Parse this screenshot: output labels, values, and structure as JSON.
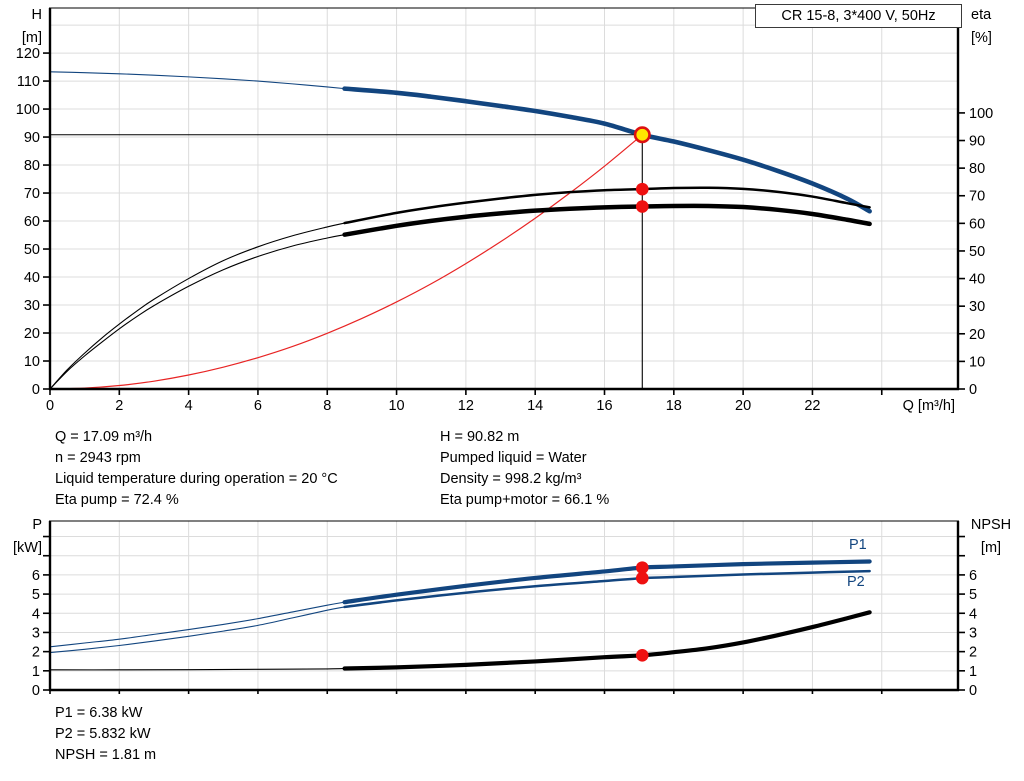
{
  "title_box": "CR 15-8, 3*400 V, 50Hz",
  "axis_labels": {
    "h1": "H",
    "h2": "[m]",
    "eta1": "eta",
    "eta2": "[%]",
    "q": "Q [m³/h]",
    "p1": "P",
    "p2": "[kW]",
    "npsh1": "NPSH",
    "npsh2": "[m]"
  },
  "curve_labels": {
    "p1": "P1",
    "p2": "P2"
  },
  "info_top": {
    "left": [
      "Q = 17.09 m³/h",
      "n = 2943 rpm",
      "Liquid temperature during operation = 20 °C",
      "Eta pump = 72.4 %"
    ],
    "right": [
      "H = 90.82 m",
      "Pumped liquid = Water",
      "Density = 998.2 kg/m³",
      "Eta pump+motor = 66.1 %"
    ]
  },
  "info_bottom": [
    "P1 = 6.38 kW",
    "P2 = 5.832 kW",
    "NPSH = 1.81 m"
  ],
  "colors": {
    "blue": "#12457f",
    "black": "#000000",
    "red": "#e82424",
    "marker_red": "#ee1111",
    "op_yellow": "#ffe600",
    "op_ring": "#dd1111",
    "grid": "#dcdcdc",
    "text": "#000000"
  },
  "chart_data": [
    {
      "type": "line",
      "title": "CR 15-8, 3*400 V, 50Hz",
      "x_axis": {
        "label": "Q [m³/h]",
        "min": 0,
        "max": 26.2,
        "tick_step": 2,
        "tick_max": 24,
        "label_max": 22,
        "grid_step": 2,
        "grid_max": 24
      },
      "y_left": {
        "label": "H [m]",
        "min": 0,
        "max": 136.1,
        "tick_step": 10,
        "tick_max": 120,
        "label_max": 120,
        "grid_max": 130
      },
      "y_right": {
        "label": "eta [%]",
        "min": 0,
        "max": 138.0,
        "tick_step": 10,
        "tick_max": 100,
        "label_max": 100
      },
      "series": [
        {
          "name": "head-curve-thin",
          "axis": "left",
          "color_key": "blue",
          "width": 1.1,
          "points": [
            [
              0,
              113.3
            ],
            [
              1,
              113.0
            ],
            [
              2,
              112.6
            ],
            [
              3,
              112.1
            ],
            [
              4,
              111.5
            ],
            [
              5,
              110.8
            ],
            [
              6,
              110.0
            ],
            [
              7,
              109.0
            ],
            [
              8,
              107.9
            ],
            [
              8.5,
              107.3
            ]
          ]
        },
        {
          "name": "head-curve",
          "axis": "left",
          "color_key": "blue",
          "width": 4.6,
          "points": [
            [
              8.5,
              107.3
            ],
            [
              10,
              105.8
            ],
            [
              11,
              104.4
            ],
            [
              12,
              102.8
            ],
            [
              13,
              101.1
            ],
            [
              14,
              99.3
            ],
            [
              15,
              97.2
            ],
            [
              16,
              94.8
            ],
            [
              17.09,
              90.82
            ],
            [
              18,
              88.4
            ],
            [
              19,
              85.3
            ],
            [
              20,
              81.9
            ],
            [
              21,
              77.9
            ],
            [
              22,
              73.4
            ],
            [
              23,
              68.0
            ],
            [
              23.65,
              63.5
            ]
          ]
        },
        {
          "name": "system-curve",
          "axis": "left",
          "color_key": "red",
          "width": 1.2,
          "points": [
            [
              0,
              0
            ],
            [
              1,
              0.31
            ],
            [
              2,
              1.24
            ],
            [
              3,
              2.8
            ],
            [
              4,
              5.0
            ],
            [
              5,
              7.8
            ],
            [
              6,
              11.2
            ],
            [
              7,
              15.2
            ],
            [
              8,
              19.9
            ],
            [
              9,
              25.2
            ],
            [
              10,
              31.1
            ],
            [
              11,
              37.6
            ],
            [
              12,
              44.8
            ],
            [
              13,
              52.6
            ],
            [
              14,
              61.0
            ],
            [
              15,
              70.0
            ],
            [
              16,
              79.6
            ],
            [
              17.09,
              90.82
            ]
          ]
        },
        {
          "name": "eta-pump-thin",
          "axis": "right",
          "color_key": "black",
          "width": 1.1,
          "points": [
            [
              0,
              0
            ],
            [
              0.5,
              7
            ],
            [
              1,
              13
            ],
            [
              1.5,
              18.5
            ],
            [
              2,
              23.5
            ],
            [
              2.5,
              28.2
            ],
            [
              3,
              32.5
            ],
            [
              4,
              40.0
            ],
            [
              5,
              46.5
            ],
            [
              6,
              51.5
            ],
            [
              7,
              55.5
            ],
            [
              8,
              58.7
            ],
            [
              8.5,
              60.1
            ]
          ]
        },
        {
          "name": "eta-pump",
          "axis": "right",
          "color_key": "black",
          "width": 2.5,
          "points": [
            [
              8.5,
              60.1
            ],
            [
              10,
              63.8
            ],
            [
              11,
              65.8
            ],
            [
              12,
              67.5
            ],
            [
              13,
              69.0
            ],
            [
              14,
              70.3
            ],
            [
              15,
              71.3
            ],
            [
              16,
              72.0
            ],
            [
              17.09,
              72.4
            ],
            [
              18,
              72.8
            ],
            [
              19,
              72.9
            ],
            [
              20,
              72.5
            ],
            [
              21,
              71.4
            ],
            [
              22,
              69.7
            ],
            [
              23,
              67.3
            ],
            [
              23.65,
              65.8
            ]
          ]
        },
        {
          "name": "eta-pump-motor-thin",
          "axis": "right",
          "color_key": "black",
          "width": 1.1,
          "points": [
            [
              0,
              0
            ],
            [
              0.5,
              6.5
            ],
            [
              1,
              12
            ],
            [
              1.5,
              17
            ],
            [
              2,
              21.8
            ],
            [
              2.5,
              26.2
            ],
            [
              3,
              30.2
            ],
            [
              4,
              37.2
            ],
            [
              5,
              43.2
            ],
            [
              6,
              48.0
            ],
            [
              7,
              51.8
            ],
            [
              8,
              54.7
            ],
            [
              8.5,
              55.9
            ]
          ]
        },
        {
          "name": "eta-pump-motor",
          "axis": "right",
          "color_key": "black",
          "width": 4.5,
          "points": [
            [
              8.5,
              55.9
            ],
            [
              10,
              59.1
            ],
            [
              11,
              60.9
            ],
            [
              12,
              62.4
            ],
            [
              13,
              63.6
            ],
            [
              14,
              64.6
            ],
            [
              15,
              65.3
            ],
            [
              16,
              65.8
            ],
            [
              17.09,
              66.1
            ],
            [
              18,
              66.3
            ],
            [
              19,
              66.3
            ],
            [
              20,
              65.9
            ],
            [
              21,
              64.9
            ],
            [
              22,
              63.4
            ],
            [
              23,
              61.3
            ],
            [
              23.65,
              59.8
            ]
          ]
        }
      ],
      "duty_lines": [
        {
          "name": "duty-point-crosshair",
          "axis": "left",
          "points": [
            [
              0,
              90.82
            ],
            [
              17.09,
              90.82
            ],
            [
              17.09,
              0
            ]
          ]
        }
      ],
      "markers": [
        {
          "name": "eta-pump-duty-marker",
          "q": 17.09,
          "value": 72.4,
          "axis": "right",
          "style": "dot"
        },
        {
          "name": "eta-pump-motor-duty-marker",
          "q": 17.09,
          "value": 66.1,
          "axis": "right",
          "style": "dot"
        },
        {
          "name": "operating-point",
          "q": 17.09,
          "value": 90.82,
          "axis": "left",
          "style": "operating_point"
        }
      ]
    },
    {
      "type": "line",
      "title": "",
      "x_axis": {
        "label": "Q [m³/h]",
        "min": 0,
        "max": 26.2,
        "tick_step": 2,
        "tick_max": 24,
        "label_max": null,
        "grid_step": 2,
        "grid_max": 24
      },
      "y_left": {
        "label": "P [kW]",
        "min": 0,
        "max": 8.81,
        "tick_step": 1,
        "tick_max": 8,
        "label_max": 6,
        "grid_max": 8
      },
      "y_right": {
        "label": "NPSH [m]",
        "min": 0,
        "max": 8.81,
        "tick_step": 1,
        "tick_max": 8,
        "label_max": 6
      },
      "series": [
        {
          "name": "p1-curve-thin",
          "axis": "left",
          "color_key": "blue",
          "width": 1.1,
          "points": [
            [
              0,
              2.25
            ],
            [
              1,
              2.45
            ],
            [
              2,
              2.65
            ],
            [
              3,
              2.9
            ],
            [
              4,
              3.15
            ],
            [
              5,
              3.42
            ],
            [
              6,
              3.72
            ],
            [
              7,
              4.07
            ],
            [
              8,
              4.42
            ],
            [
              8.5,
              4.58
            ]
          ]
        },
        {
          "name": "p1-curve",
          "axis": "left",
          "color_key": "blue",
          "width": 4.2,
          "points": [
            [
              8.5,
              4.58
            ],
            [
              10,
              4.97
            ],
            [
              12,
              5.43
            ],
            [
              14,
              5.84
            ],
            [
              16,
              6.18
            ],
            [
              17.09,
              6.38
            ],
            [
              18,
              6.44
            ],
            [
              20,
              6.56
            ],
            [
              22,
              6.64
            ],
            [
              23.65,
              6.7
            ]
          ]
        },
        {
          "name": "p2-curve-thin",
          "axis": "left",
          "color_key": "blue",
          "width": 1.1,
          "points": [
            [
              0,
              1.95
            ],
            [
              1,
              2.12
            ],
            [
              2,
              2.32
            ],
            [
              3,
              2.55
            ],
            [
              4,
              2.8
            ],
            [
              5,
              3.07
            ],
            [
              6,
              3.37
            ],
            [
              7,
              3.76
            ],
            [
              8,
              4.16
            ],
            [
              8.5,
              4.33
            ]
          ]
        },
        {
          "name": "p2-curve",
          "axis": "left",
          "color_key": "blue",
          "width": 2.5,
          "points": [
            [
              8.5,
              4.33
            ],
            [
              10,
              4.67
            ],
            [
              12,
              5.07
            ],
            [
              14,
              5.41
            ],
            [
              16,
              5.68
            ],
            [
              17.09,
              5.83
            ],
            [
              18,
              5.89
            ],
            [
              20,
              6.02
            ],
            [
              22,
              6.12
            ],
            [
              23.65,
              6.2
            ]
          ]
        },
        {
          "name": "npsh-curve-thin",
          "axis": "right",
          "color_key": "black",
          "width": 1.1,
          "points": [
            [
              0,
              1.05
            ],
            [
              2,
              1.05
            ],
            [
              4,
              1.06
            ],
            [
              6,
              1.08
            ],
            [
              8,
              1.1
            ],
            [
              8.5,
              1.12
            ]
          ]
        },
        {
          "name": "npsh-curve",
          "axis": "right",
          "color_key": "black",
          "width": 4.2,
          "points": [
            [
              8.5,
              1.12
            ],
            [
              10,
              1.18
            ],
            [
              12,
              1.31
            ],
            [
              14,
              1.49
            ],
            [
              16,
              1.71
            ],
            [
              17.09,
              1.81
            ],
            [
              18,
              1.97
            ],
            [
              19,
              2.18
            ],
            [
              20,
              2.48
            ],
            [
              21,
              2.86
            ],
            [
              22,
              3.28
            ],
            [
              23,
              3.74
            ],
            [
              23.65,
              4.05
            ]
          ]
        }
      ],
      "duty_lines": [],
      "markers": [
        {
          "name": "p1-duty-marker",
          "q": 17.09,
          "value": 6.38,
          "axis": "left",
          "style": "dot"
        },
        {
          "name": "p2-duty-marker",
          "q": 17.09,
          "value": 5.832,
          "axis": "left",
          "style": "dot"
        },
        {
          "name": "npsh-duty-marker",
          "q": 17.09,
          "value": 1.81,
          "axis": "right",
          "style": "dot"
        }
      ]
    }
  ]
}
